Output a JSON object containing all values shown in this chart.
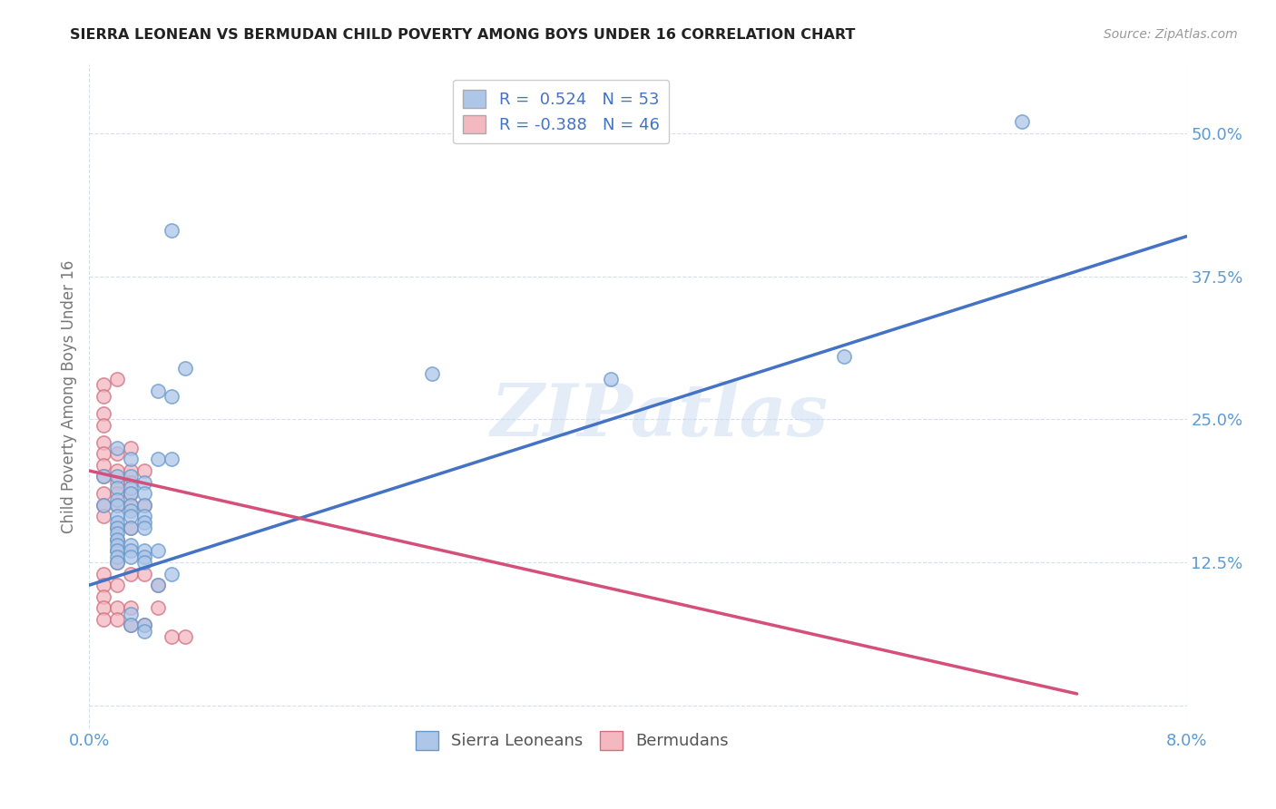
{
  "title": "SIERRA LEONEAN VS BERMUDAN CHILD POVERTY AMONG BOYS UNDER 16 CORRELATION CHART",
  "source": "Source: ZipAtlas.com",
  "ylabel": "Child Poverty Among Boys Under 16",
  "xlim": [
    0.0,
    0.08
  ],
  "ylim": [
    -0.02,
    0.56
  ],
  "yticks": [
    0.0,
    0.125,
    0.25,
    0.375,
    0.5
  ],
  "ytick_labels": [
    "",
    "12.5%",
    "25.0%",
    "37.5%",
    "50.0%"
  ],
  "xticks": [
    0.0,
    0.08
  ],
  "xtick_labels": [
    "0.0%",
    "8.0%"
  ],
  "sierra_color": "#aec6e8",
  "sierra_edge_color": "#6699cc",
  "bermuda_color": "#f4b8c1",
  "bermuda_edge_color": "#d07080",
  "sierra_line_color": "#4472c4",
  "bermuda_line_color": "#d4507a",
  "watermark": "ZIPatlas",
  "sierra_points": [
    [
      0.001,
      0.2
    ],
    [
      0.001,
      0.175
    ],
    [
      0.002,
      0.225
    ],
    [
      0.002,
      0.2
    ],
    [
      0.002,
      0.19
    ],
    [
      0.002,
      0.18
    ],
    [
      0.002,
      0.175
    ],
    [
      0.002,
      0.165
    ],
    [
      0.002,
      0.16
    ],
    [
      0.002,
      0.155
    ],
    [
      0.002,
      0.15
    ],
    [
      0.002,
      0.145
    ],
    [
      0.002,
      0.14
    ],
    [
      0.002,
      0.135
    ],
    [
      0.002,
      0.13
    ],
    [
      0.002,
      0.125
    ],
    [
      0.003,
      0.215
    ],
    [
      0.003,
      0.2
    ],
    [
      0.003,
      0.19
    ],
    [
      0.003,
      0.185
    ],
    [
      0.003,
      0.175
    ],
    [
      0.003,
      0.17
    ],
    [
      0.003,
      0.165
    ],
    [
      0.003,
      0.155
    ],
    [
      0.003,
      0.14
    ],
    [
      0.003,
      0.135
    ],
    [
      0.003,
      0.13
    ],
    [
      0.003,
      0.08
    ],
    [
      0.003,
      0.07
    ],
    [
      0.004,
      0.195
    ],
    [
      0.004,
      0.185
    ],
    [
      0.004,
      0.175
    ],
    [
      0.004,
      0.165
    ],
    [
      0.004,
      0.16
    ],
    [
      0.004,
      0.155
    ],
    [
      0.004,
      0.135
    ],
    [
      0.004,
      0.13
    ],
    [
      0.004,
      0.125
    ],
    [
      0.004,
      0.07
    ],
    [
      0.004,
      0.065
    ],
    [
      0.005,
      0.275
    ],
    [
      0.005,
      0.215
    ],
    [
      0.005,
      0.135
    ],
    [
      0.005,
      0.105
    ],
    [
      0.006,
      0.415
    ],
    [
      0.006,
      0.27
    ],
    [
      0.006,
      0.215
    ],
    [
      0.006,
      0.115
    ],
    [
      0.007,
      0.295
    ],
    [
      0.025,
      0.29
    ],
    [
      0.038,
      0.285
    ],
    [
      0.055,
      0.305
    ],
    [
      0.068,
      0.51
    ]
  ],
  "bermuda_points": [
    [
      0.001,
      0.28
    ],
    [
      0.001,
      0.27
    ],
    [
      0.001,
      0.255
    ],
    [
      0.001,
      0.245
    ],
    [
      0.001,
      0.23
    ],
    [
      0.001,
      0.22
    ],
    [
      0.001,
      0.21
    ],
    [
      0.001,
      0.2
    ],
    [
      0.001,
      0.185
    ],
    [
      0.001,
      0.175
    ],
    [
      0.001,
      0.165
    ],
    [
      0.001,
      0.115
    ],
    [
      0.001,
      0.105
    ],
    [
      0.001,
      0.095
    ],
    [
      0.001,
      0.085
    ],
    [
      0.001,
      0.075
    ],
    [
      0.002,
      0.285
    ],
    [
      0.002,
      0.22
    ],
    [
      0.002,
      0.205
    ],
    [
      0.002,
      0.195
    ],
    [
      0.002,
      0.185
    ],
    [
      0.002,
      0.175
    ],
    [
      0.002,
      0.155
    ],
    [
      0.002,
      0.145
    ],
    [
      0.002,
      0.135
    ],
    [
      0.002,
      0.125
    ],
    [
      0.002,
      0.105
    ],
    [
      0.002,
      0.085
    ],
    [
      0.002,
      0.075
    ],
    [
      0.003,
      0.225
    ],
    [
      0.003,
      0.205
    ],
    [
      0.003,
      0.195
    ],
    [
      0.003,
      0.185
    ],
    [
      0.003,
      0.175
    ],
    [
      0.003,
      0.155
    ],
    [
      0.003,
      0.115
    ],
    [
      0.003,
      0.085
    ],
    [
      0.003,
      0.07
    ],
    [
      0.004,
      0.205
    ],
    [
      0.004,
      0.175
    ],
    [
      0.004,
      0.115
    ],
    [
      0.004,
      0.07
    ],
    [
      0.005,
      0.105
    ],
    [
      0.005,
      0.085
    ],
    [
      0.006,
      0.06
    ],
    [
      0.007,
      0.06
    ]
  ],
  "sierra_trend_x": [
    0.0,
    0.08
  ],
  "sierra_trend_y": [
    0.105,
    0.41
  ],
  "bermuda_trend_x": [
    0.0,
    0.072
  ],
  "bermuda_trend_y": [
    0.205,
    0.01
  ]
}
